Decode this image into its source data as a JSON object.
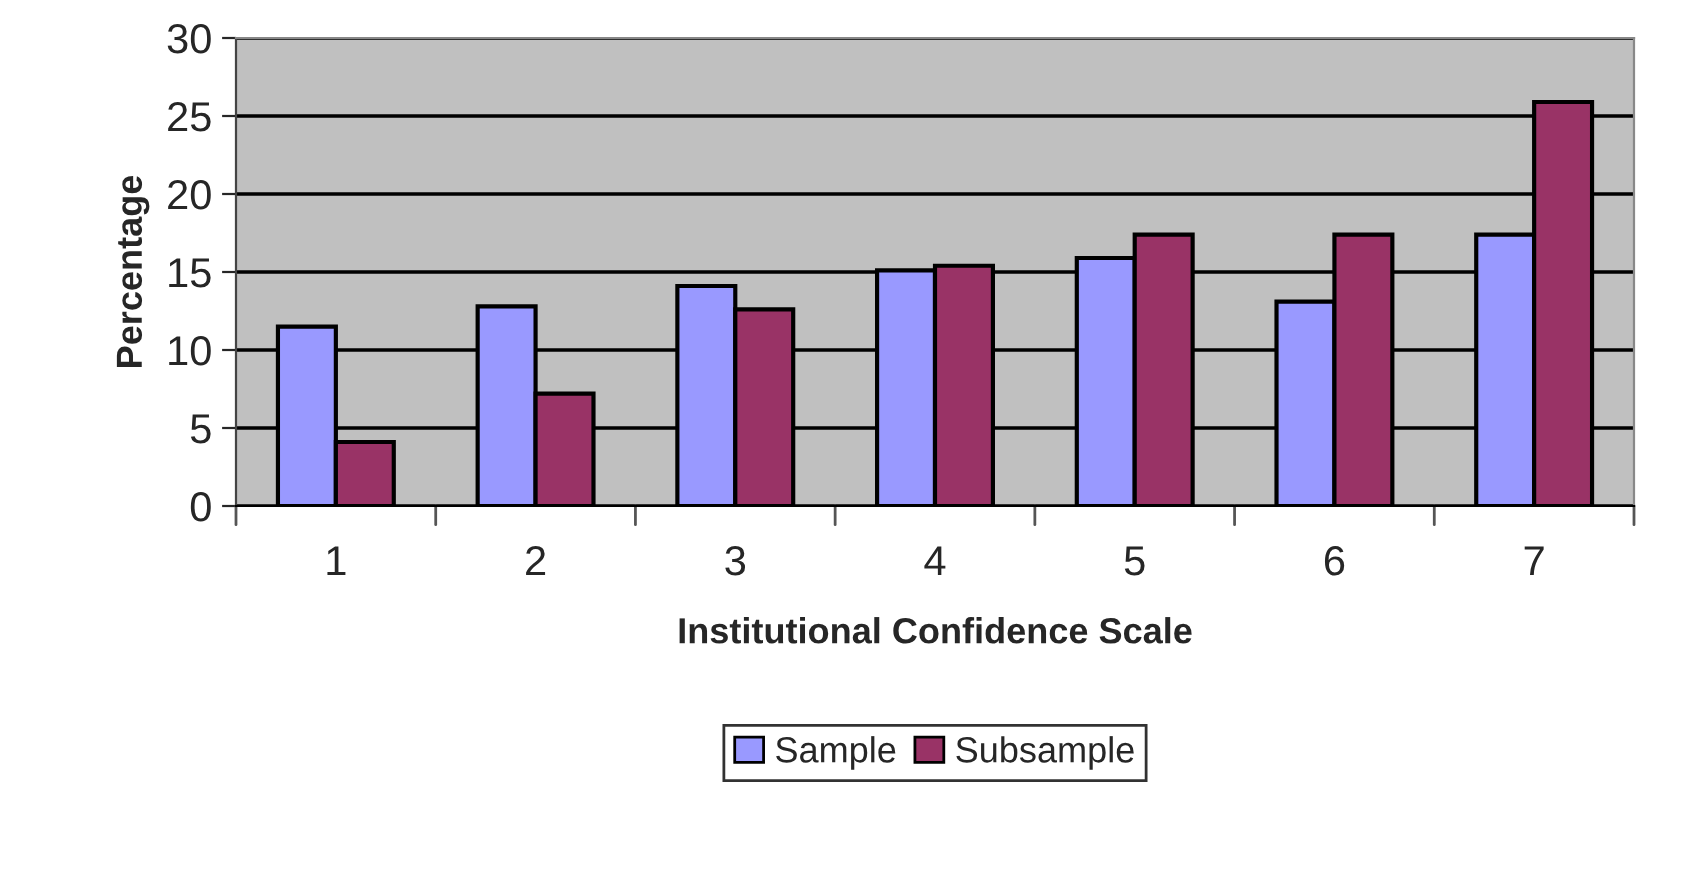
{
  "chart_data": {
    "type": "bar",
    "xlabel": "Institutional Confidence Scale",
    "ylabel": "Percentage",
    "categories": [
      "1",
      "2",
      "3",
      "4",
      "5",
      "6",
      "7"
    ],
    "series": [
      {
        "name": "Sample",
        "color": "#9999ff",
        "values": [
          11.5,
          12.8,
          14.1,
          15.1,
          15.9,
          13.1,
          17.4
        ]
      },
      {
        "name": "Subsample",
        "color": "#993366",
        "values": [
          4.1,
          7.2,
          12.6,
          15.4,
          17.4,
          17.4,
          25.9
        ]
      }
    ],
    "ylim": [
      0,
      30
    ],
    "yticks": [
      0,
      5,
      10,
      15,
      20,
      25,
      30
    ],
    "grid": "y",
    "legend": "bottom"
  }
}
